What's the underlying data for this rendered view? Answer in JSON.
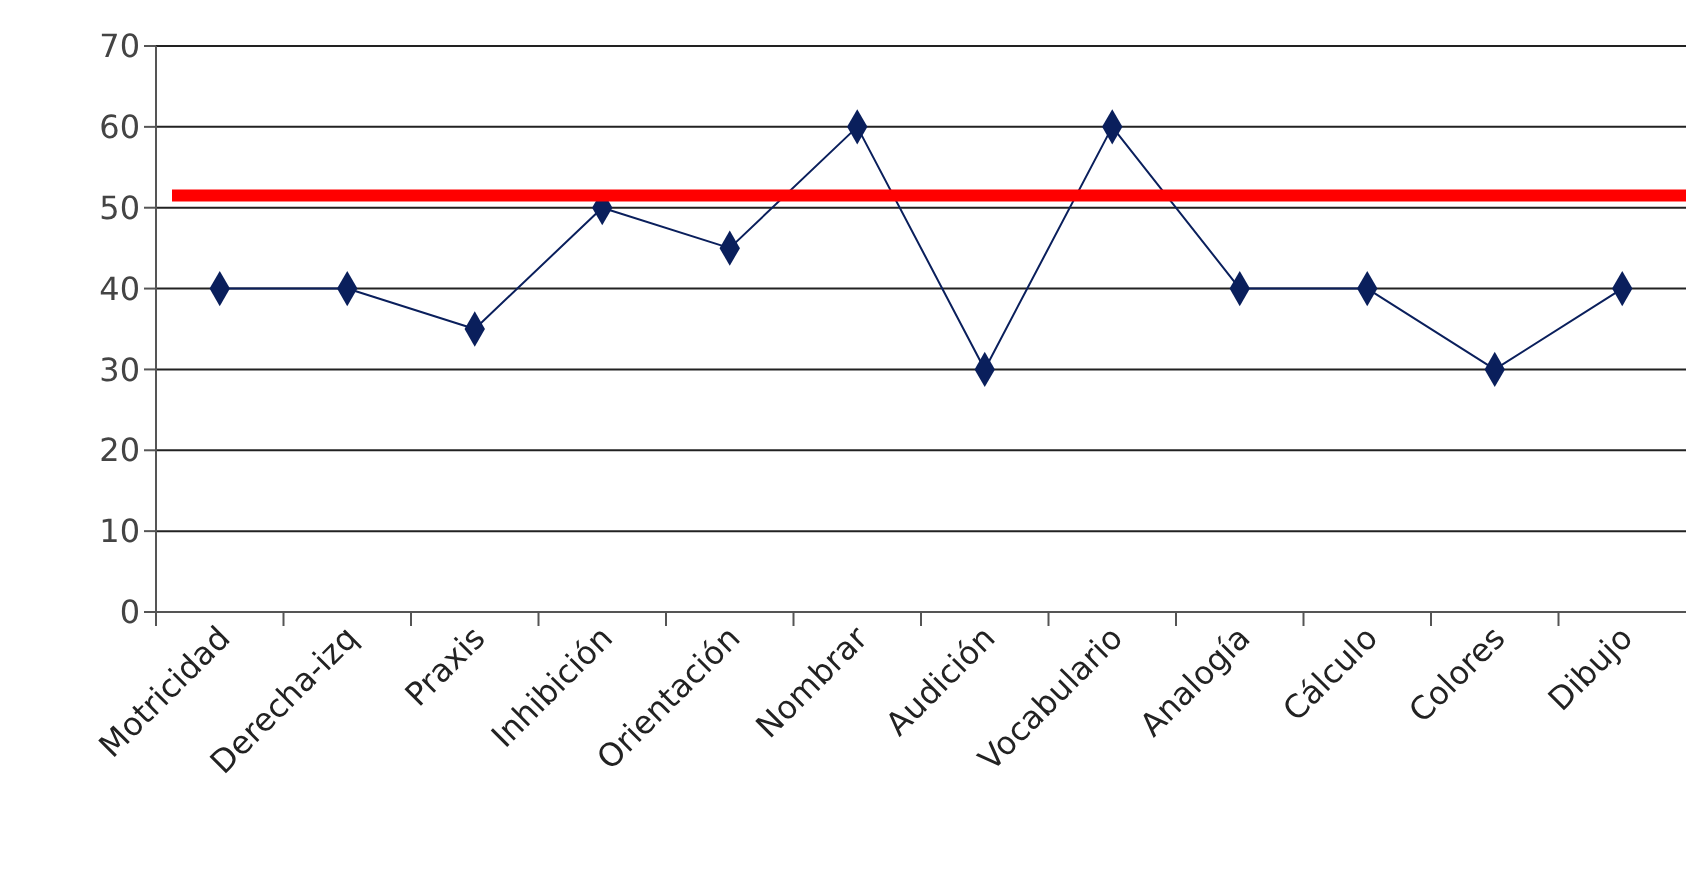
{
  "chart_data": {
    "type": "line",
    "categories": [
      "Motricidad",
      "Derecha-izq",
      "Praxis",
      "Inhibición",
      "Orientación",
      "Nombrar",
      "Audición",
      "Vocabulario",
      "Analogía",
      "Cálculo",
      "Colores",
      "Dibujo"
    ],
    "series": [
      {
        "color": "#0a1f5c",
        "values": [
          40,
          40,
          35,
          50,
          45,
          60,
          30,
          60,
          40,
          40,
          30,
          40
        ]
      }
    ],
    "ylim": [
      0,
      70
    ],
    "yticks": [
      0,
      10,
      20,
      30,
      40,
      50,
      60,
      70
    ],
    "grid": "y",
    "marker": "diamond",
    "line_style": "solid",
    "ref_lines": [
      {
        "axis": "y",
        "value": 51.5,
        "color": "#ff0000",
        "line_style": "solid"
      }
    ]
  }
}
